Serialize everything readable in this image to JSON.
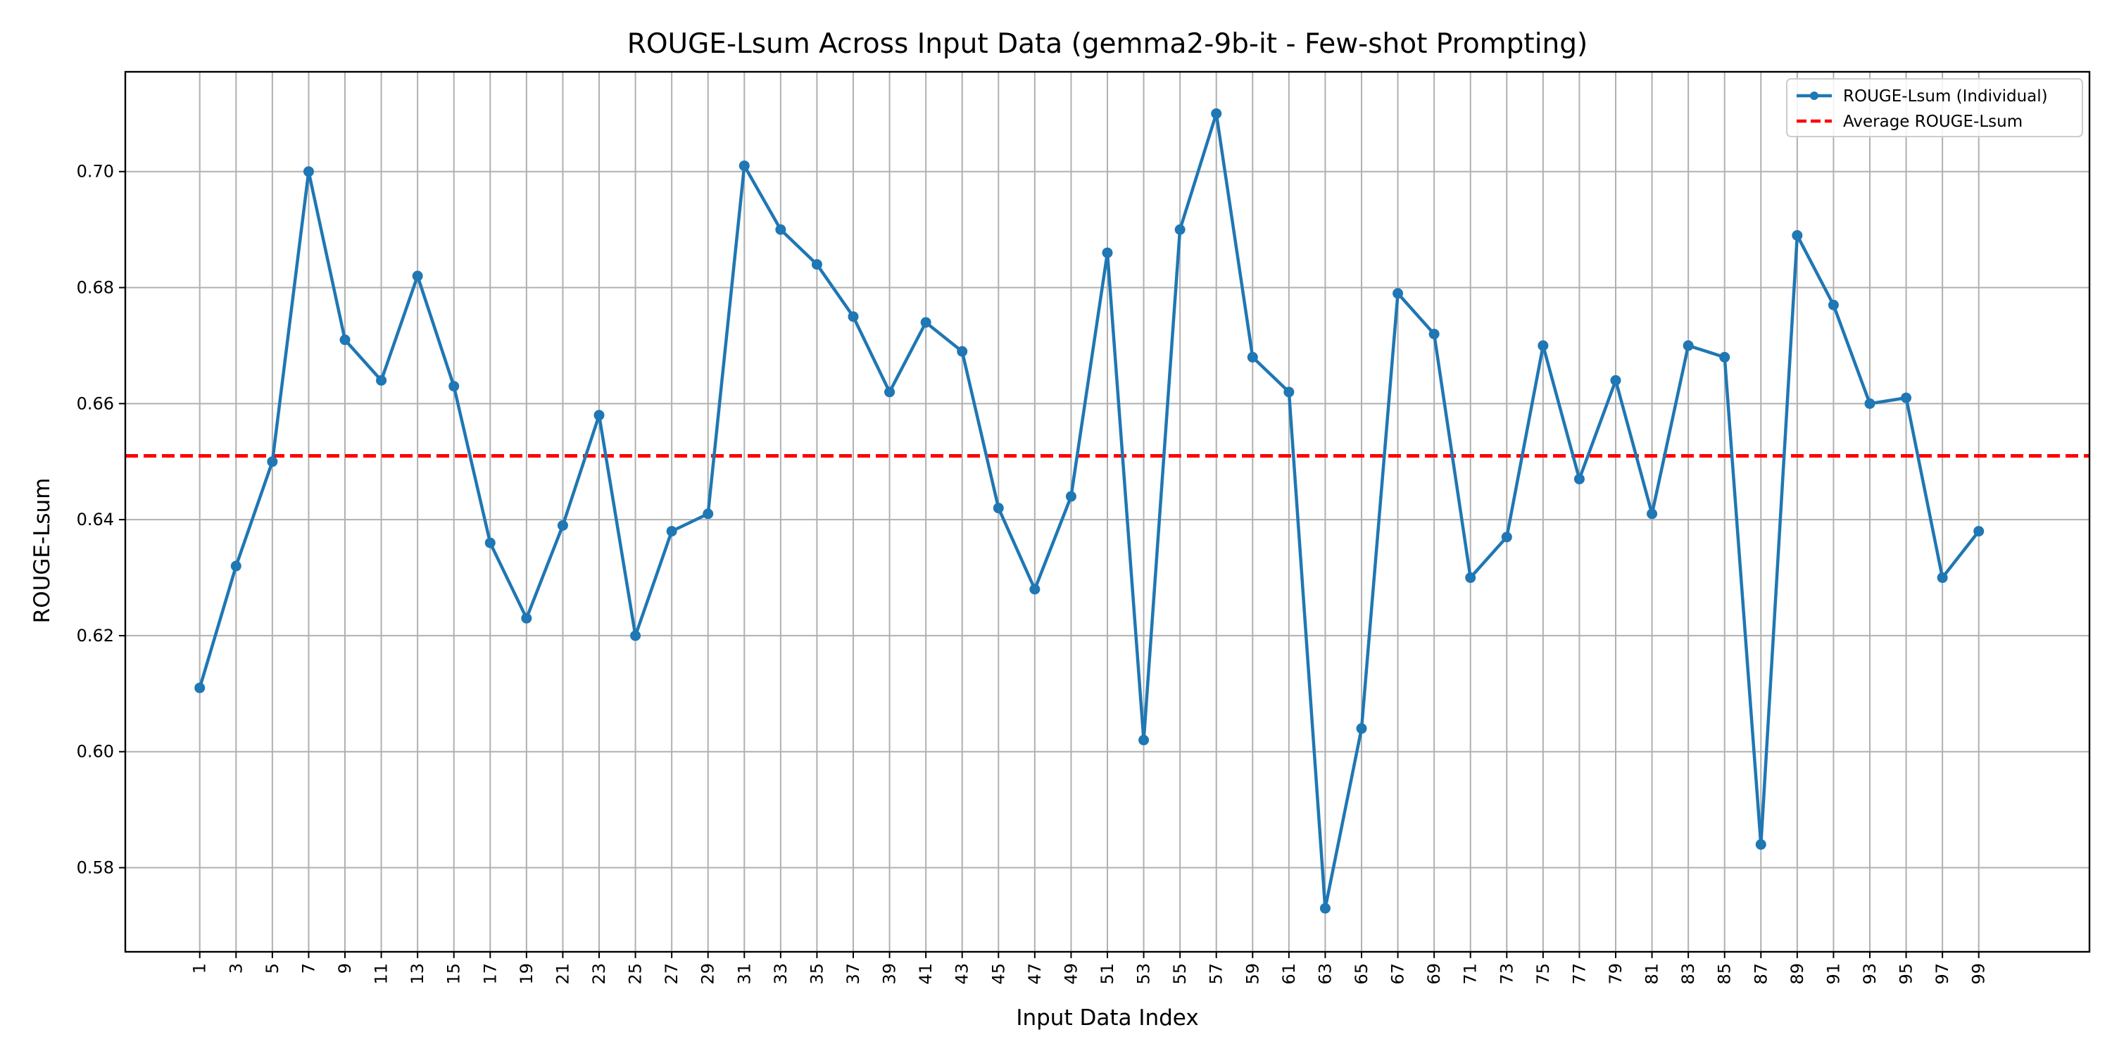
{
  "chart_data": {
    "type": "line",
    "title": "ROUGE-Lsum Across Input Data (gemma2-9b-it - Few-shot Prompting)",
    "xlabel": "Input Data Index",
    "ylabel": "ROUGE-Lsum",
    "xlim": [
      -3.1,
      105.1
    ],
    "ylim": [
      0.5655,
      0.7172
    ],
    "xticks": [
      1,
      3,
      5,
      7,
      9,
      11,
      13,
      15,
      17,
      19,
      21,
      23,
      25,
      27,
      29,
      31,
      33,
      35,
      37,
      39,
      41,
      43,
      45,
      47,
      49,
      51,
      53,
      55,
      57,
      59,
      61,
      63,
      65,
      67,
      69,
      71,
      73,
      75,
      77,
      79,
      81,
      83,
      85,
      87,
      89,
      91,
      93,
      95,
      97,
      99
    ],
    "xtick_labels": [
      "1",
      "3",
      "5",
      "7",
      "9",
      "11",
      "13",
      "15",
      "17",
      "19",
      "21",
      "23",
      "25",
      "27",
      "29",
      "31",
      "33",
      "35",
      "37",
      "39",
      "41",
      "43",
      "45",
      "47",
      "49",
      "51",
      "53",
      "55",
      "57",
      "59",
      "61",
      "63",
      "65",
      "67",
      "69",
      "71",
      "73",
      "75",
      "77",
      "79",
      "81",
      "83",
      "85",
      "87",
      "89",
      "91",
      "93",
      "95",
      "97",
      "99"
    ],
    "yticks": [
      0.58,
      0.6,
      0.62,
      0.64,
      0.66,
      0.68,
      0.7
    ],
    "ytick_labels": [
      "0.58",
      "0.60",
      "0.62",
      "0.64",
      "0.66",
      "0.68",
      "0.70"
    ],
    "grid": true,
    "legend_position": "top-right",
    "series": [
      {
        "name": "ROUGE-Lsum (Individual)",
        "style": "solid-line-with-markers",
        "color": "#1f77b4",
        "x": [
          1,
          3,
          5,
          7,
          9,
          11,
          13,
          15,
          17,
          19,
          21,
          23,
          25,
          27,
          29,
          31,
          33,
          35,
          37,
          39,
          41,
          43,
          45,
          47,
          49,
          51,
          53,
          55,
          57,
          59,
          61,
          63,
          65,
          67,
          69,
          71,
          73,
          75,
          77,
          79,
          81,
          83,
          85,
          87,
          89,
          91,
          93,
          95,
          97,
          99
        ],
        "y": [
          0.611,
          0.632,
          0.65,
          0.7,
          0.671,
          0.664,
          0.682,
          0.663,
          0.636,
          0.623,
          0.639,
          0.658,
          0.62,
          0.638,
          0.641,
          0.701,
          0.69,
          0.684,
          0.675,
          0.662,
          0.674,
          0.669,
          0.642,
          0.628,
          0.644,
          0.686,
          0.602,
          0.69,
          0.71,
          0.668,
          0.662,
          0.573,
          0.604,
          0.679,
          0.672,
          0.63,
          0.637,
          0.67,
          0.647,
          0.664,
          0.641,
          0.67,
          0.668,
          0.584,
          0.689,
          0.677,
          0.66,
          0.661,
          0.63,
          0.638
        ]
      },
      {
        "name": "Average ROUGE-Lsum",
        "style": "dashed-horizontal-line",
        "color": "#ff0000",
        "value": 0.651
      }
    ]
  }
}
